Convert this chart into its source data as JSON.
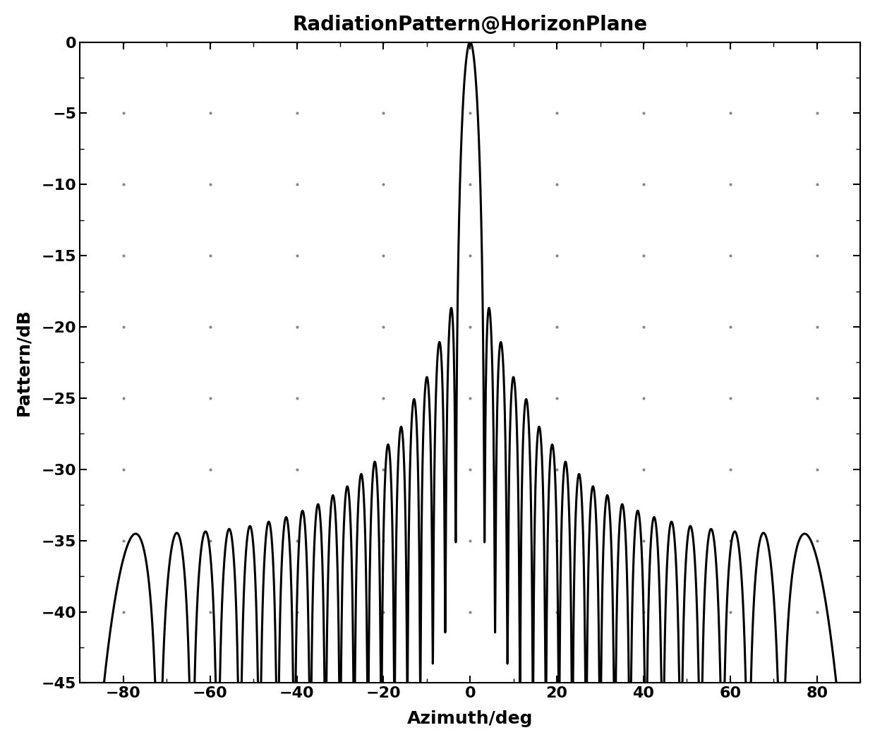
{
  "title": "RadiationPattern@HorizonPlane",
  "xlabel": "Azimuth/deg",
  "ylabel": "Pattern/dB",
  "xlim": [
    -90,
    90
  ],
  "ylim": [
    -45,
    0
  ],
  "xticks": [
    -80,
    -60,
    -40,
    -20,
    0,
    20,
    40,
    60,
    80
  ],
  "yticks": [
    0,
    -5,
    -10,
    -15,
    -20,
    -25,
    -30,
    -35,
    -40,
    -45
  ],
  "background_color": "#ffffff",
  "line_color": "#000000",
  "line_width": 2.2,
  "grid_dot_color": "#777777",
  "title_fontsize": 20,
  "label_fontsize": 18,
  "tick_fontsize": 16,
  "N": 20,
  "d": 0.5,
  "nbar": 4,
  "sll_dB": -20
}
